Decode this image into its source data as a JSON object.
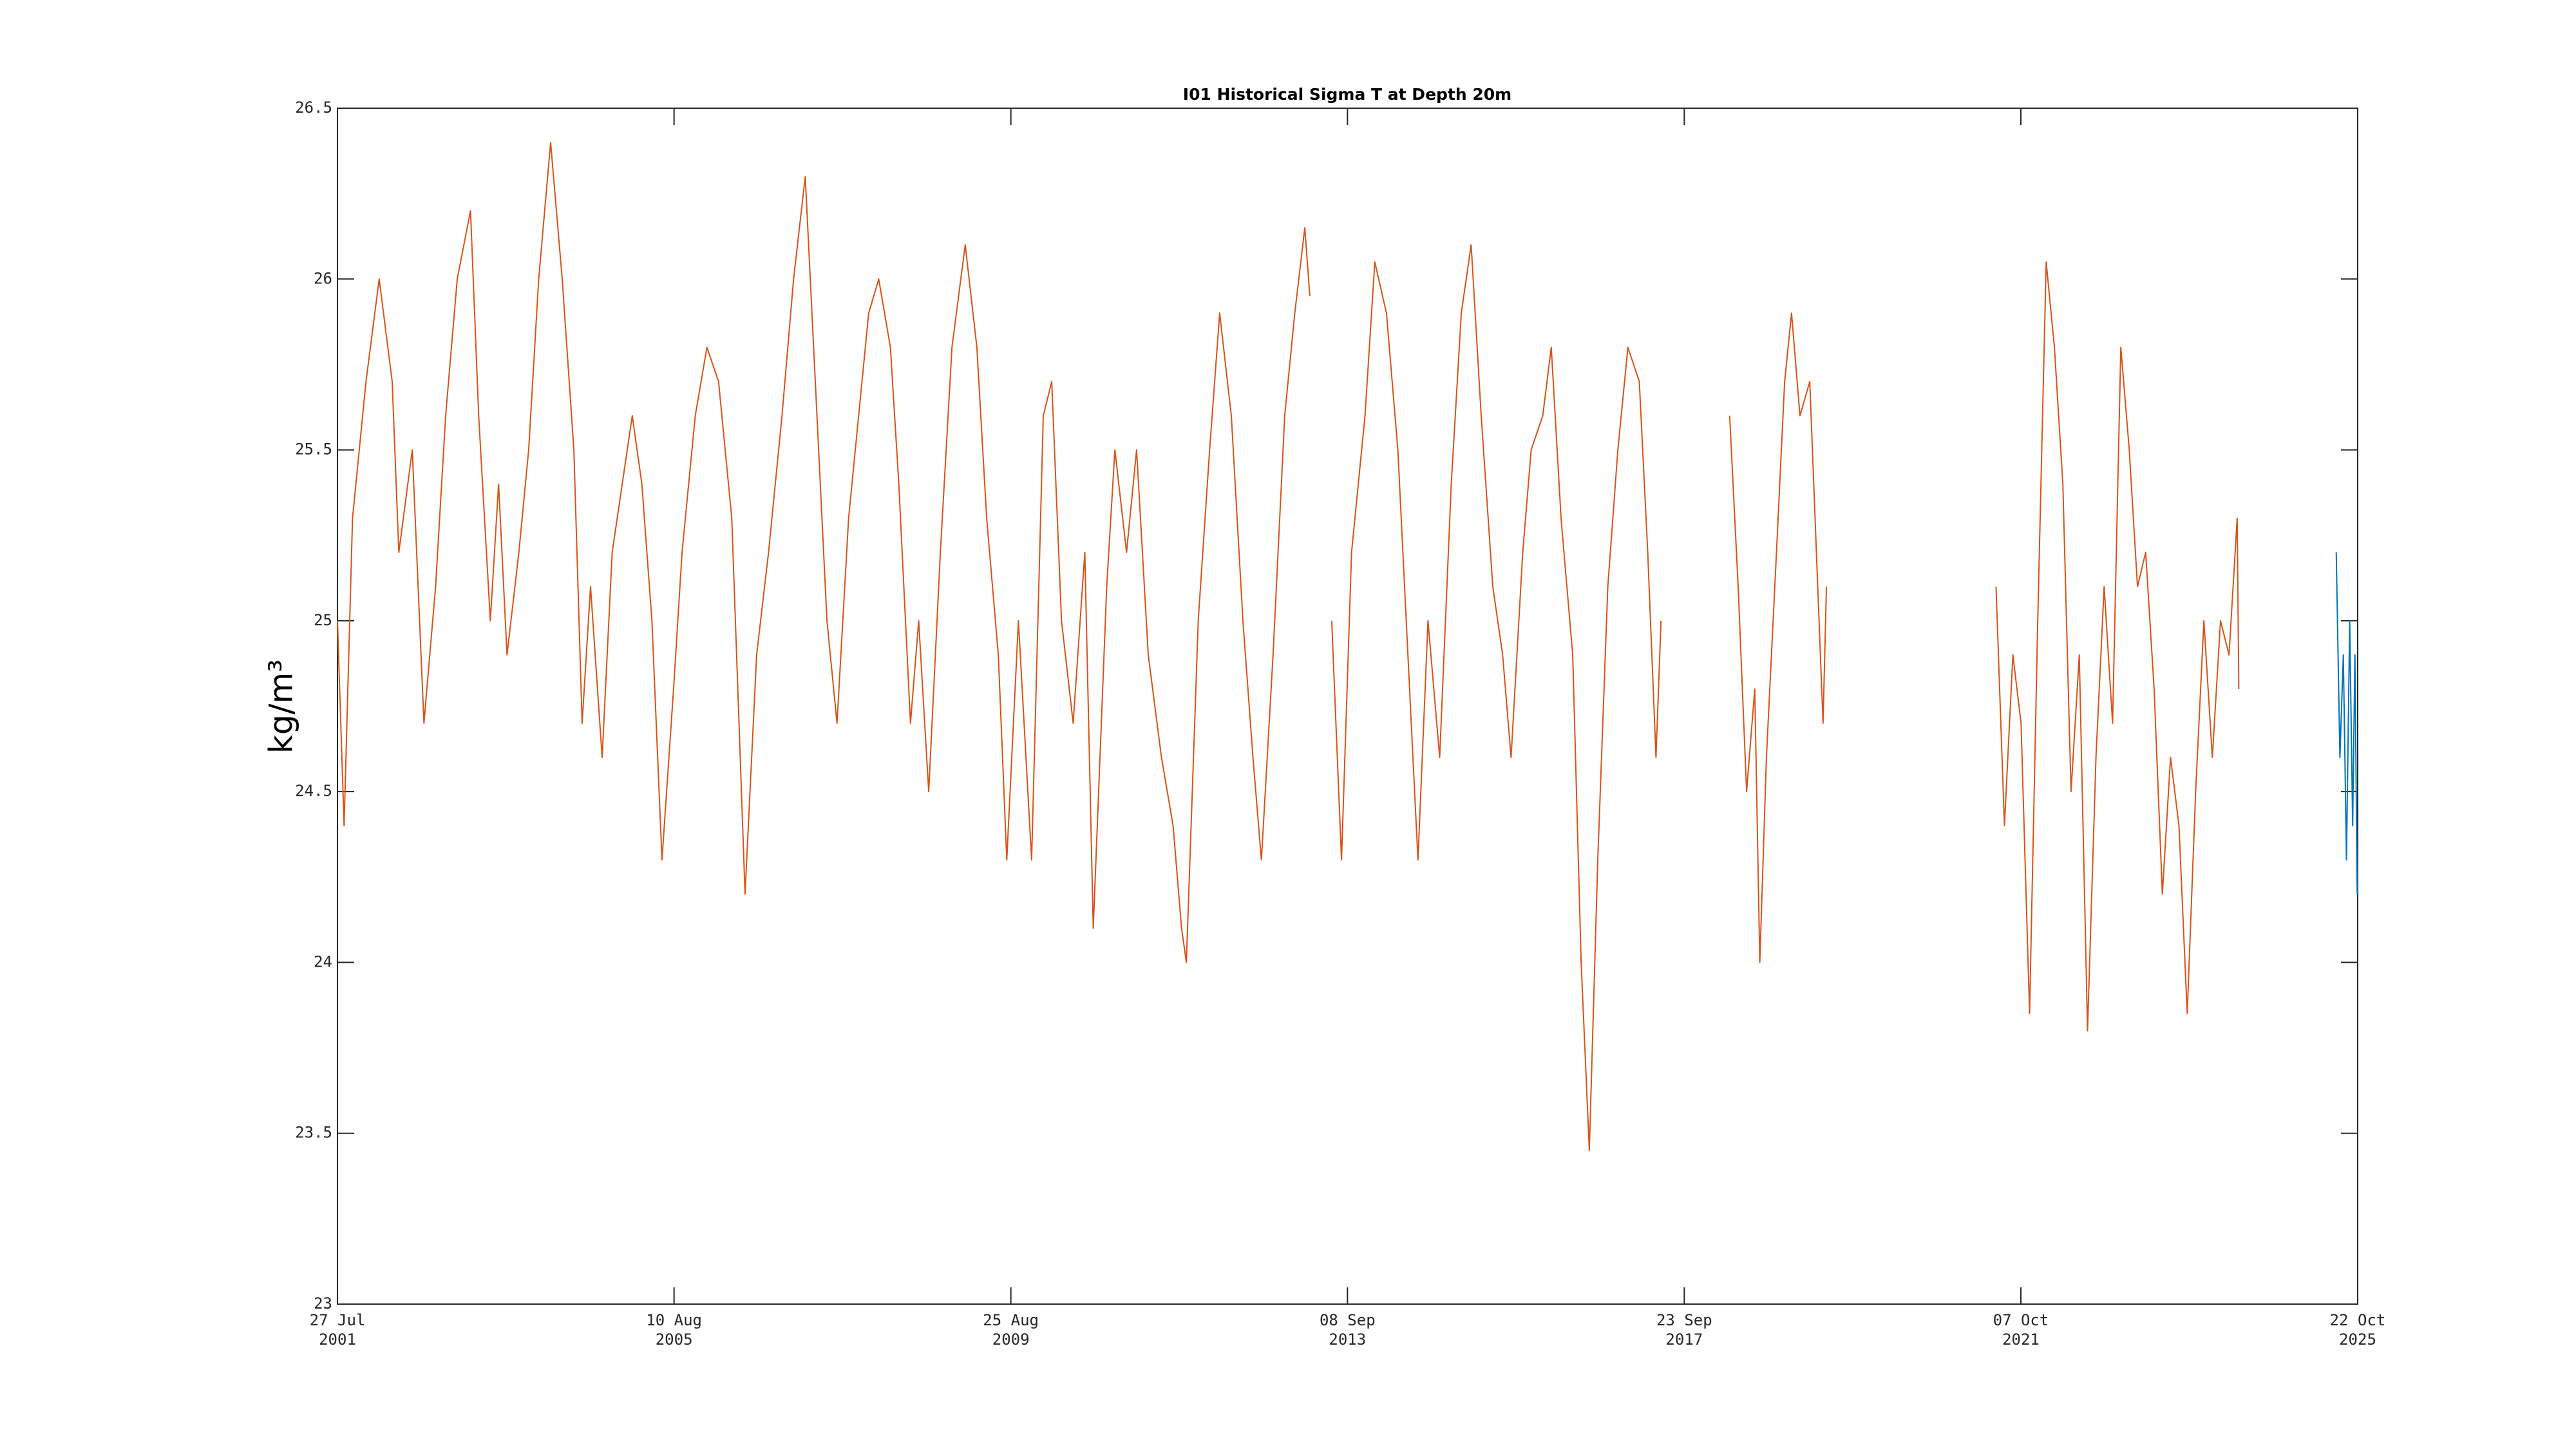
{
  "chart_data": {
    "type": "line",
    "title": "I01 Historical Sigma T at Depth 20m",
    "ylabel": "kg/m³",
    "xlim": [
      "2001-07-27",
      "2025-10-22"
    ],
    "xticks": [
      {
        "value": "2001-07-27",
        "label": "27 Jul\n2001"
      },
      {
        "value": "2005-08-10",
        "label": "10 Aug\n2005"
      },
      {
        "value": "2009-08-25",
        "label": "25 Aug\n2009"
      },
      {
        "value": "2013-09-08",
        "label": "08 Sep\n2013"
      },
      {
        "value": "2017-09-23",
        "label": "23 Sep\n2017"
      },
      {
        "value": "2021-10-07",
        "label": "07 Oct\n2021"
      },
      {
        "value": "2025-10-22",
        "label": "22 Oct\n2025"
      }
    ],
    "ylim": [
      23,
      26.5
    ],
    "yticks": [
      23,
      23.5,
      24,
      24.5,
      25,
      25.5,
      26,
      26.5
    ],
    "series": [
      {
        "color": "#D95319",
        "x": [
          "2001-07-27",
          "2001-08-25",
          "2001-10-01",
          "2001-11-29",
          "2002-01-26",
          "2002-03-24",
          "2002-04-22",
          "2002-06-20",
          "2002-08-10",
          "2002-09-30",
          "2002-11-13",
          "2003-01-03",
          "2003-03-02",
          "2003-04-07",
          "2003-05-28",
          "2003-07-03",
          "2003-08-09",
          "2003-09-30",
          "2003-11-12",
          "2003-12-26",
          "2004-02-16",
          "2004-04-07",
          "2004-05-28",
          "2004-07-03",
          "2004-08-09",
          "2004-09-29",
          "2004-11-12",
          "2004-12-26",
          "2005-02-08",
          "2005-03-22",
          "2005-05-05",
          "2005-06-18",
          "2005-08-08",
          "2005-09-14",
          "2005-11-11",
          "2006-01-01",
          "2006-02-21",
          "2006-04-20",
          "2006-06-17",
          "2006-08-07",
          "2006-09-28",
          "2006-11-26",
          "2007-01-16",
          "2007-03-08",
          "2007-04-21",
          "2007-06-11",
          "2007-07-25",
          "2007-09-14",
          "2007-10-28",
          "2007-12-11",
          "2008-01-24",
          "2008-03-15",
          "2008-04-21",
          "2008-06-11",
          "2008-07-17",
          "2008-08-30",
          "2008-10-20",
          "2008-12-10",
          "2009-02-06",
          "2009-03-29",
          "2009-05-11",
          "2009-07-01",
          "2009-08-07",
          "2009-09-27",
          "2009-11-24",
          "2010-01-14",
          "2010-02-20",
          "2010-04-04",
          "2010-05-25",
          "2010-07-15",
          "2010-08-21",
          "2010-10-19",
          "2010-11-24",
          "2011-01-14",
          "2011-02-27",
          "2011-04-19",
          "2011-06-16",
          "2011-08-06",
          "2011-09-12",
          "2011-10-03",
          "2011-11-24",
          "2012-01-13",
          "2012-02-26",
          "2012-04-17",
          "2012-06-07",
          "2012-07-21",
          "2012-08-27",
          "2012-10-17",
          "2012-12-07",
          "2013-01-20",
          "2013-03-05",
          "2013-03-27",
          null,
          "2013-07-01",
          "2013-08-13",
          "2013-09-26",
          "2013-11-24",
          "2014-01-06",
          "2014-02-26",
          "2014-04-17",
          "2014-05-31",
          "2014-07-14",
          "2014-08-27",
          "2014-10-17",
          "2014-12-07",
          "2015-01-20",
          "2015-03-04",
          "2015-04-17",
          "2015-06-07",
          "2015-07-20",
          "2015-08-26",
          "2015-10-16",
          "2015-11-22",
          "2016-01-12",
          "2016-02-18",
          "2016-04-01",
          "2016-05-22",
          "2016-06-28",
          "2016-08-03",
          "2016-09-09",
          "2016-10-23",
          "2016-12-06",
          "2017-01-19",
          "2017-03-10",
          "2017-04-16",
          "2017-05-22",
          "2017-06-13",
          null,
          "2018-04-10",
          "2018-05-17",
          "2018-06-23",
          "2018-07-29",
          "2018-08-20",
          "2018-09-18",
          "2018-11-01",
          "2018-12-07",
          "2019-01-06",
          "2019-02-12",
          "2019-03-27",
          "2019-04-25",
          "2019-05-24",
          "2019-06-08",
          null,
          "2021-06-20",
          "2021-07-27",
          "2021-09-02",
          "2021-10-08",
          "2021-11-14",
          "2021-12-20",
          "2022-01-26",
          "2022-03-03",
          "2022-04-09",
          "2022-05-15",
          "2022-06-20",
          "2022-07-26",
          "2022-09-01",
          "2022-10-07",
          "2022-11-13",
          "2022-12-19",
          "2023-01-25",
          "2023-03-02",
          "2023-04-07",
          "2023-05-14",
          "2023-06-19",
          "2023-07-25",
          "2023-08-31",
          "2023-10-06",
          "2023-11-12",
          "2023-12-18",
          "2024-01-24",
          "2024-02-29",
          "2024-04-06",
          "2024-05-12",
          "2024-05-19"
        ],
        "values": [
          25.0,
          24.4,
          25.3,
          25.7,
          26.0,
          25.7,
          25.2,
          25.5,
          24.7,
          25.1,
          25.6,
          26.0,
          26.2,
          25.6,
          25.0,
          25.4,
          24.9,
          25.2,
          25.5,
          26.0,
          26.4,
          26.0,
          25.5,
          24.7,
          25.1,
          24.6,
          25.2,
          25.4,
          25.6,
          25.4,
          25.0,
          24.3,
          24.8,
          25.2,
          25.6,
          25.8,
          25.7,
          25.3,
          24.2,
          24.9,
          25.2,
          25.6,
          26.0,
          26.3,
          25.7,
          25.0,
          24.7,
          25.3,
          25.6,
          25.9,
          26.0,
          25.8,
          25.4,
          24.7,
          25.0,
          24.5,
          25.2,
          25.8,
          26.1,
          25.8,
          25.3,
          24.9,
          24.3,
          25.0,
          24.3,
          25.6,
          25.7,
          25.0,
          24.7,
          25.2,
          24.1,
          25.1,
          25.5,
          25.2,
          25.5,
          24.9,
          24.6,
          24.4,
          24.1,
          24.0,
          25.0,
          25.5,
          25.9,
          25.6,
          25.0,
          24.6,
          24.3,
          24.9,
          25.6,
          25.9,
          26.15,
          25.95,
          null,
          25.0,
          24.3,
          25.2,
          25.6,
          26.05,
          25.9,
          25.5,
          24.9,
          24.3,
          25.0,
          24.6,
          25.4,
          25.9,
          26.1,
          25.6,
          25.1,
          24.9,
          24.6,
          25.2,
          25.5,
          25.6,
          25.8,
          25.3,
          24.9,
          24.0,
          23.45,
          24.3,
          25.1,
          25.5,
          25.8,
          25.7,
          25.2,
          24.6,
          25.0,
          null,
          25.6,
          25.1,
          24.5,
          24.8,
          24.0,
          24.6,
          25.2,
          25.7,
          25.9,
          25.6,
          25.7,
          25.2,
          24.7,
          25.1,
          null,
          25.1,
          24.4,
          24.9,
          24.7,
          23.85,
          25.0,
          26.05,
          25.8,
          25.4,
          24.5,
          24.9,
          23.8,
          24.6,
          25.1,
          24.7,
          25.8,
          25.5,
          25.1,
          25.2,
          24.8,
          24.2,
          24.6,
          24.4,
          23.85,
          24.5,
          25.0,
          24.6,
          25.0,
          24.9,
          25.3,
          24.8
        ]
      },
      {
        "color": "#0072BD",
        "x": [
          "2025-07-20",
          "2025-08-05",
          "2025-08-20",
          "2025-09-03",
          "2025-09-17",
          "2025-09-30",
          "2025-10-10",
          "2025-10-20"
        ],
        "values": [
          25.2,
          24.6,
          24.9,
          24.3,
          25.0,
          24.4,
          24.9,
          24.2
        ]
      }
    ]
  }
}
